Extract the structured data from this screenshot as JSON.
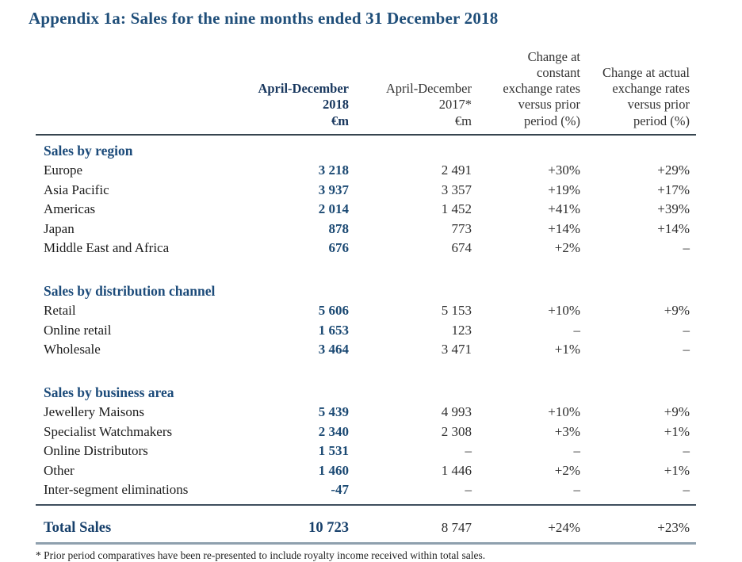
{
  "title": "Appendix 1a: Sales for the nine months ended 31 December 2018",
  "colors": {
    "heading_navy": "#1F4E79",
    "bold_value_navy": "#17365D",
    "body_text": "#262626",
    "rule_dark": "#36454F",
    "rule_light": "#8FA0AE"
  },
  "columns": {
    "y2018": "April-December\n2018\n€m",
    "y2017": "April-December\n2017*\n€m",
    "constant": "Change at\nconstant\nexchange rates\nversus prior\nperiod (%)",
    "actual": "Change at actual\nexchange rates\nversus prior\nperiod (%)"
  },
  "rows": [
    {
      "type": "section",
      "label": "Sales by region"
    },
    {
      "type": "data",
      "label": "Europe",
      "c2018": "3 218",
      "c2017": "2 491",
      "constant": "+30%",
      "actual": "+29%"
    },
    {
      "type": "data",
      "label": "Asia Pacific",
      "c2018": "3 937",
      "c2017": "3 357",
      "constant": "+19%",
      "actual": "+17%"
    },
    {
      "type": "data",
      "label": "Americas",
      "c2018": "2 014",
      "c2017": "1 452",
      "constant": "+41%",
      "actual": "+39%"
    },
    {
      "type": "data",
      "label": "Japan",
      "c2018": "878",
      "c2017": "773",
      "constant": "+14%",
      "actual": "+14%"
    },
    {
      "type": "data",
      "label": "Middle East and Africa",
      "c2018": "676",
      "c2017": "674",
      "constant": "+2%",
      "actual": "–"
    },
    {
      "type": "section",
      "label": "Sales by distribution channel"
    },
    {
      "type": "data",
      "label": "Retail",
      "c2018": "5 606",
      "c2017": "5 153",
      "constant": "+10%",
      "actual": "+9%"
    },
    {
      "type": "data",
      "label": "Online retail",
      "c2018": "1 653",
      "c2017": "123",
      "constant": "–",
      "actual": "–"
    },
    {
      "type": "data",
      "label": "Wholesale",
      "c2018": "3 464",
      "c2017": "3 471",
      "constant": "+1%",
      "actual": "–"
    },
    {
      "type": "section",
      "label": "Sales by business area"
    },
    {
      "type": "data",
      "label": "Jewellery Maisons",
      "c2018": "5 439",
      "c2017": "4 993",
      "constant": "+10%",
      "actual": "+9%"
    },
    {
      "type": "data",
      "label": "Specialist Watchmakers",
      "c2018": "2 340",
      "c2017": "2 308",
      "constant": "+3%",
      "actual": "+1%"
    },
    {
      "type": "data",
      "label": "Online Distributors",
      "c2018": "1 531",
      "c2017": "–",
      "constant": "–",
      "actual": "–"
    },
    {
      "type": "data",
      "label": "Other",
      "c2018": "1 460",
      "c2017": "1 446",
      "constant": "+2%",
      "actual": "+1%"
    },
    {
      "type": "data",
      "label": "Inter-segment eliminations",
      "c2018": "-47",
      "c2017": "–",
      "constant": "–",
      "actual": "–"
    },
    {
      "type": "total",
      "label": "Total Sales",
      "c2018": "10 723",
      "c2017": "8 747",
      "constant": "+24%",
      "actual": "+23%"
    }
  ],
  "footnote": "* Prior period comparatives have been re-presented to include royalty income received within total sales."
}
